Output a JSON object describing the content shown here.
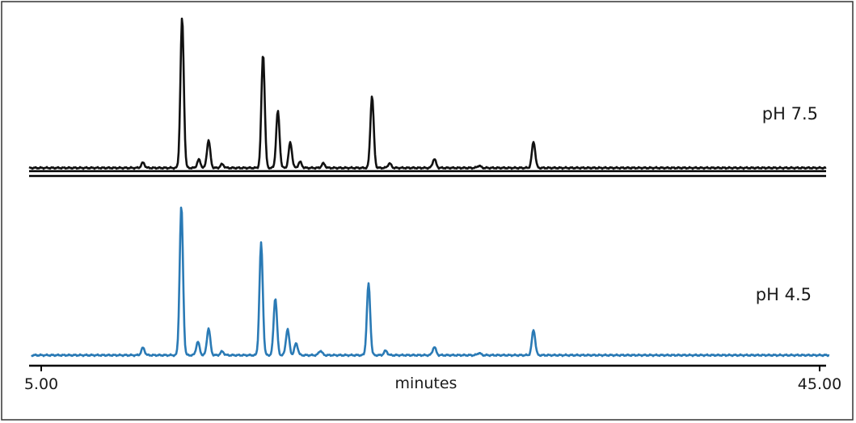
{
  "chart_data": {
    "type": "line",
    "title": "",
    "xlabel": "minutes",
    "ylabel": "",
    "xlim": [
      5.0,
      45.0
    ],
    "ylim": [
      0,
      100
    ],
    "grid": false,
    "x_ticks": [
      "5.00",
      "45.00"
    ],
    "layout": "stacked",
    "series": [
      {
        "name": "pH 7.5",
        "color": "#111111",
        "peaks": [
          {
            "t": 10.23,
            "h": 3.5
          },
          {
            "t": 12.24,
            "h": 100.0
          },
          {
            "t": 13.1,
            "h": 5.5
          },
          {
            "t": 13.6,
            "h": 18.5
          },
          {
            "t": 14.3,
            "h": 2.5
          },
          {
            "t": 16.4,
            "h": 76.0
          },
          {
            "t": 17.16,
            "h": 38.0
          },
          {
            "t": 17.8,
            "h": 17.0
          },
          {
            "t": 18.3,
            "h": 4.0
          },
          {
            "t": 19.5,
            "h": 3.0
          },
          {
            "t": 22.0,
            "h": 48.0
          },
          {
            "t": 22.9,
            "h": 3.0
          },
          {
            "t": 25.2,
            "h": 6.0
          },
          {
            "t": 27.5,
            "h": 1.5
          },
          {
            "t": 30.3,
            "h": 17.5
          }
        ]
      },
      {
        "name": "pH 4.5",
        "color": "#2a7ab5",
        "peaks": [
          {
            "t": 10.23,
            "h": 5.0
          },
          {
            "t": 12.2,
            "h": 100.0
          },
          {
            "t": 13.05,
            "h": 9.0
          },
          {
            "t": 13.6,
            "h": 18.0
          },
          {
            "t": 14.3,
            "h": 2.5
          },
          {
            "t": 16.3,
            "h": 75.0
          },
          {
            "t": 17.03,
            "h": 38.5
          },
          {
            "t": 17.66,
            "h": 17.5
          },
          {
            "t": 18.1,
            "h": 8.0
          },
          {
            "t": 19.35,
            "h": 3.0
          },
          {
            "t": 21.82,
            "h": 48.0
          },
          {
            "t": 22.7,
            "h": 3.0
          },
          {
            "t": 25.2,
            "h": 5.5
          },
          {
            "t": 27.5,
            "h": 1.5
          },
          {
            "t": 30.3,
            "h": 17.0
          }
        ]
      }
    ]
  }
}
